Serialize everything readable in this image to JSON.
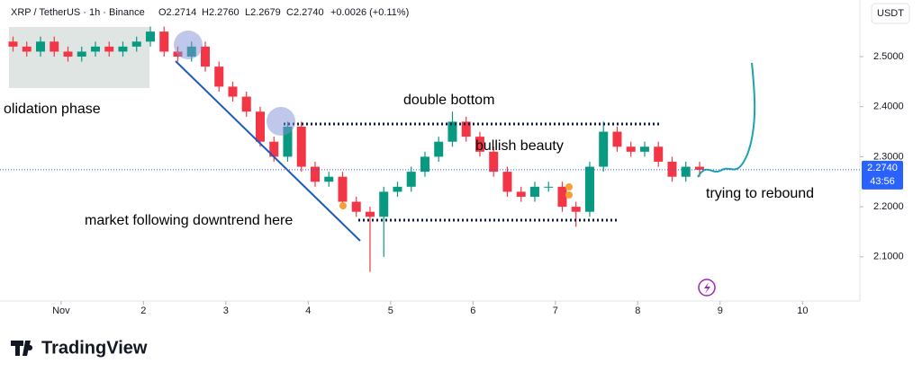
{
  "header": {
    "symbol": "XRP / TetherUS · 1h · Binance",
    "open": "O2.2714",
    "high": "H2.2760",
    "low": "L2.2679",
    "close": "C2.2740",
    "change": "+0.0026 (+0.11%)",
    "currency": "USDT"
  },
  "last_price_label": "2.2740",
  "countdown": "43:56",
  "brand": "TradingView",
  "annotations": [
    "olidation phase",
    "double bottom",
    "bullish beauty",
    "market following downtrend here",
    "trying to rebound"
  ],
  "chart_data": {
    "type": "candlestick",
    "up_color": "#089981",
    "down_color": "#f23645",
    "x": [
      -14,
      -10,
      -6,
      -2,
      2,
      6,
      10,
      14,
      18,
      22,
      26,
      30,
      34,
      38,
      42,
      46,
      50,
      54,
      58,
      62,
      66,
      70,
      74,
      78,
      82,
      86,
      90,
      94,
      98,
      102,
      106,
      110,
      114,
      118,
      122,
      126,
      130,
      134,
      138,
      142,
      146,
      150,
      154,
      158,
      162,
      166,
      170,
      174,
      178,
      182,
      186
    ],
    "open": [
      2.53,
      2.52,
      2.51,
      2.53,
      2.51,
      2.5,
      2.51,
      2.52,
      2.51,
      2.52,
      2.53,
      2.55,
      2.51,
      2.5,
      2.52,
      2.48,
      2.44,
      2.42,
      2.39,
      2.33,
      2.3,
      2.36,
      2.28,
      2.25,
      2.26,
      2.21,
      2.19,
      2.18,
      2.23,
      2.24,
      2.27,
      2.3,
      2.33,
      2.37,
      2.34,
      2.31,
      2.27,
      2.23,
      2.22,
      2.24,
      2.24,
      2.2,
      2.19,
      2.28,
      2.35,
      2.32,
      2.31,
      2.32,
      2.29,
      2.26,
      2.28
    ],
    "high": [
      2.54,
      2.53,
      2.54,
      2.54,
      2.52,
      2.52,
      2.53,
      2.53,
      2.53,
      2.54,
      2.56,
      2.56,
      2.52,
      2.53,
      2.53,
      2.49,
      2.45,
      2.43,
      2.4,
      2.34,
      2.37,
      2.37,
      2.29,
      2.27,
      2.27,
      2.22,
      2.2,
      2.24,
      2.25,
      2.28,
      2.31,
      2.34,
      2.39,
      2.38,
      2.35,
      2.32,
      2.28,
      2.24,
      2.25,
      2.25,
      2.25,
      2.21,
      2.29,
      2.37,
      2.36,
      2.33,
      2.33,
      2.33,
      2.3,
      2.29,
      2.29
    ],
    "low": [
      2.51,
      2.5,
      2.5,
      2.5,
      2.49,
      2.49,
      2.5,
      2.5,
      2.5,
      2.51,
      2.52,
      2.5,
      2.49,
      2.49,
      2.47,
      2.43,
      2.41,
      2.38,
      2.32,
      2.29,
      2.29,
      2.27,
      2.24,
      2.24,
      2.2,
      2.18,
      2.07,
      2.1,
      2.22,
      2.23,
      2.26,
      2.29,
      2.32,
      2.33,
      2.3,
      2.26,
      2.22,
      2.21,
      2.21,
      2.23,
      2.19,
      2.16,
      2.18,
      2.27,
      2.31,
      2.3,
      2.3,
      2.28,
      2.25,
      2.25,
      2.26
    ],
    "close": [
      2.52,
      2.51,
      2.53,
      2.51,
      2.5,
      2.51,
      2.52,
      2.51,
      2.52,
      2.53,
      2.55,
      2.51,
      2.5,
      2.52,
      2.48,
      2.44,
      2.42,
      2.39,
      2.33,
      2.3,
      2.36,
      2.28,
      2.25,
      2.26,
      2.21,
      2.19,
      2.18,
      2.23,
      2.24,
      2.27,
      2.3,
      2.33,
      2.37,
      2.34,
      2.31,
      2.27,
      2.23,
      2.22,
      2.24,
      2.24,
      2.2,
      2.19,
      2.28,
      2.35,
      2.32,
      2.31,
      2.32,
      2.29,
      2.26,
      2.28,
      2.274
    ],
    "xlim": [
      -17.8,
      232.7
    ],
    "xticks": [
      {
        "value": 0,
        "label": "Nov"
      },
      {
        "value": 24,
        "label": "2"
      },
      {
        "value": 48,
        "label": "3"
      },
      {
        "value": 72,
        "label": "4"
      },
      {
        "value": 96,
        "label": "5"
      },
      {
        "value": 120,
        "label": "6"
      },
      {
        "value": 144,
        "label": "7"
      },
      {
        "value": 168,
        "label": "8"
      },
      {
        "value": 192,
        "label": "9"
      },
      {
        "value": 216,
        "label": "10"
      }
    ],
    "ylim": [
      2.0117,
      2.6131
    ],
    "yticks": [
      {
        "value": 2.1,
        "label": "2.1000"
      },
      {
        "value": 2.2,
        "label": "2.2000"
      },
      {
        "value": 2.3,
        "label": "2.3000"
      },
      {
        "value": 2.4,
        "label": "2.4000"
      },
      {
        "value": 2.5,
        "label": "2.5000"
      }
    ]
  }
}
